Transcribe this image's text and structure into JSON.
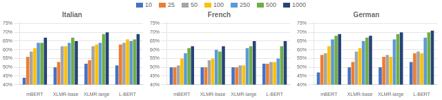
{
  "chart_data": [
    {
      "type": "bar",
      "title": "Italian",
      "categories": [
        "mBERT",
        "XLMR-base",
        "XLMR-large",
        "L-BERT"
      ],
      "series": [
        {
          "name": "10",
          "color": "#4472C4",
          "values": [
            44,
            50,
            52,
            51
          ]
        },
        {
          "name": "25",
          "color": "#ED7D31",
          "values": [
            56,
            53,
            54,
            63
          ]
        },
        {
          "name": "50",
          "color": "#A5A5A5",
          "values": [
            59,
            62,
            62,
            64
          ]
        },
        {
          "name": "100",
          "color": "#FFC000",
          "values": [
            61,
            62,
            63,
            66
          ]
        },
        {
          "name": "250",
          "color": "#5B9BD5",
          "values": [
            64,
            64,
            64,
            65
          ]
        },
        {
          "name": "500",
          "color": "#70AD47",
          "values": [
            64,
            67,
            69,
            66
          ]
        },
        {
          "name": "1000",
          "color": "#264478",
          "values": [
            67,
            65,
            70,
            69
          ]
        }
      ],
      "ylim": [
        40,
        76
      ],
      "yticks": [
        {
          "value": 40,
          "label": "40%"
        },
        {
          "value": 45,
          "label": "45%"
        },
        {
          "value": 50,
          "label": "50%"
        },
        {
          "value": 55,
          "label": "55%"
        },
        {
          "value": 60,
          "label": "60%"
        },
        {
          "value": 65,
          "label": "65%"
        },
        {
          "value": 70,
          "label": "70%"
        },
        {
          "value": 75,
          "label": "75%"
        }
      ],
      "grid": true,
      "legend": "top"
    },
    {
      "type": "bar",
      "title": "French",
      "categories": [
        "mBERT",
        "XLMR-base",
        "XLMR-large",
        "L-BERT"
      ],
      "series": [
        {
          "name": "10",
          "color": "#4472C4",
          "values": [
            50,
            50,
            50,
            52
          ]
        },
        {
          "name": "25",
          "color": "#ED7D31",
          "values": [
            50,
            50,
            50,
            52
          ]
        },
        {
          "name": "50",
          "color": "#A5A5A5",
          "values": [
            51,
            54,
            51,
            53
          ]
        },
        {
          "name": "100",
          "color": "#FFC000",
          "values": [
            55,
            55,
            51,
            53
          ]
        },
        {
          "name": "250",
          "color": "#5B9BD5",
          "values": [
            58,
            60,
            61,
            55
          ]
        },
        {
          "name": "500",
          "color": "#70AD47",
          "values": [
            61,
            59,
            62,
            62
          ]
        },
        {
          "name": "1000",
          "color": "#264478",
          "values": [
            62,
            62,
            65,
            65
          ]
        }
      ],
      "ylim": [
        40,
        76
      ],
      "yticks": [
        {
          "value": 40,
          "label": "40%"
        },
        {
          "value": 45,
          "label": "45%"
        },
        {
          "value": 50,
          "label": "50%"
        },
        {
          "value": 55,
          "label": "55%"
        },
        {
          "value": 60,
          "label": "60%"
        },
        {
          "value": 65,
          "label": "65%"
        },
        {
          "value": 70,
          "label": "70%"
        },
        {
          "value": 75,
          "label": "75%"
        }
      ],
      "grid": true,
      "legend": "top"
    },
    {
      "type": "bar",
      "title": "German",
      "categories": [
        "mBERT",
        "XLMR-base",
        "XLMR-large",
        "L-BERT"
      ],
      "series": [
        {
          "name": "10",
          "color": "#4472C4",
          "values": [
            47,
            50,
            50,
            53
          ]
        },
        {
          "name": "25",
          "color": "#ED7D31",
          "values": [
            57,
            53,
            56,
            58
          ]
        },
        {
          "name": "50",
          "color": "#A5A5A5",
          "values": [
            58,
            59,
            57,
            59
          ]
        },
        {
          "name": "100",
          "color": "#FFC000",
          "values": [
            62,
            61,
            56,
            58
          ]
        },
        {
          "name": "250",
          "color": "#5B9BD5",
          "values": [
            66,
            65,
            66,
            67
          ]
        },
        {
          "name": "500",
          "color": "#70AD47",
          "values": [
            68,
            67,
            69,
            70
          ]
        },
        {
          "name": "1000",
          "color": "#264478",
          "values": [
            69,
            68,
            70,
            71
          ]
        }
      ],
      "ylim": [
        40,
        76
      ],
      "yticks": [
        {
          "value": 40,
          "label": "40%"
        },
        {
          "value": 45,
          "label": "45%"
        },
        {
          "value": 50,
          "label": "50%"
        },
        {
          "value": 55,
          "label": "55%"
        },
        {
          "value": 60,
          "label": "60%"
        },
        {
          "value": 65,
          "label": "65%"
        },
        {
          "value": 70,
          "label": "70%"
        },
        {
          "value": 75,
          "label": "75%"
        }
      ],
      "grid": true,
      "legend": "top"
    }
  ]
}
